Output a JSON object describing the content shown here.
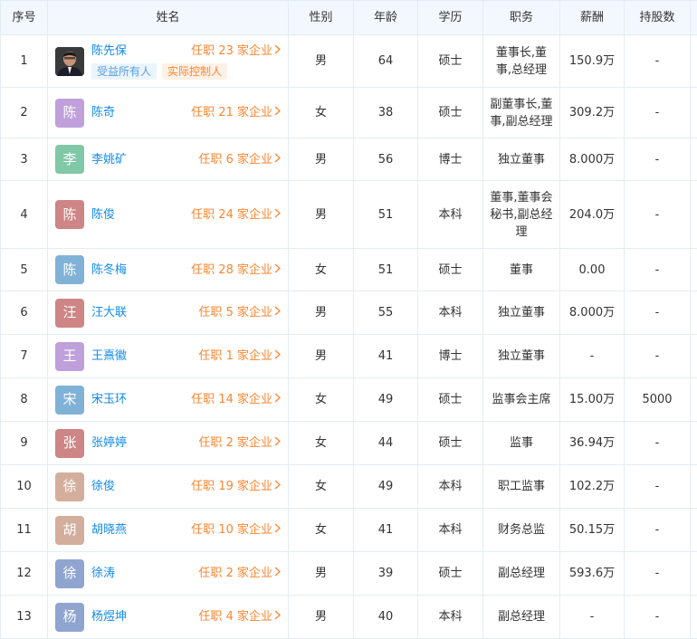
{
  "headers": [
    "序号",
    "姓名",
    "性别",
    "年龄",
    "学历",
    "职务",
    "薪酬",
    "持股数",
    ""
  ],
  "jobs_prefix": "任职",
  "jobs_suffix": "家企业",
  "colors": {
    "link": "#128bed",
    "jobs": "#fd8630",
    "header_bg": "#f2f8fe",
    "border": "#e4ecf3"
  },
  "rows": [
    {
      "no": "1",
      "name": "陈先保",
      "avatar": "photo",
      "avatar_color": "#2b2b2b",
      "jobs": "23",
      "tags": [
        {
          "label": "受益所有人",
          "style": "blue"
        },
        {
          "label": "实际控制人",
          "style": "orange"
        }
      ],
      "gender": "男",
      "age": "64",
      "edu": "硕士",
      "title": "董事长,董事,总经理",
      "pay": "150.9万",
      "shares": "-"
    },
    {
      "no": "2",
      "name": "陈奇",
      "avatar": "陈",
      "avatar_color": "#bfa0db",
      "jobs": "21",
      "gender": "女",
      "age": "38",
      "edu": "硕士",
      "title": "副董事长,董事,副总经理",
      "pay": "309.2万",
      "shares": "-"
    },
    {
      "no": "3",
      "name": "李姚矿",
      "avatar": "李",
      "avatar_color": "#80c8a8",
      "jobs": "6",
      "gender": "男",
      "age": "56",
      "edu": "博士",
      "title": "独立董事",
      "pay": "8.000万",
      "shares": "-"
    },
    {
      "no": "4",
      "name": "陈俊",
      "avatar": "陈",
      "avatar_color": "#cd8585",
      "jobs": "24",
      "gender": "男",
      "age": "51",
      "edu": "本科",
      "title": "董事,董事会秘书,副总经理",
      "pay": "204.0万",
      "shares": "-"
    },
    {
      "no": "5",
      "name": "陈冬梅",
      "avatar": "陈",
      "avatar_color": "#80b2d8",
      "jobs": "28",
      "gender": "女",
      "age": "51",
      "edu": "硕士",
      "title": "董事",
      "pay": "0.00",
      "shares": "-"
    },
    {
      "no": "6",
      "name": "汪大联",
      "avatar": "汪",
      "avatar_color": "#cd8585",
      "jobs": "5",
      "gender": "男",
      "age": "55",
      "edu": "本科",
      "title": "独立董事",
      "pay": "8.000万",
      "shares": "-"
    },
    {
      "no": "7",
      "name": "王熹徽",
      "avatar": "王",
      "avatar_color": "#bfa0db",
      "jobs": "1",
      "gender": "男",
      "age": "41",
      "edu": "博士",
      "title": "独立董事",
      "pay": "-",
      "shares": "-"
    },
    {
      "no": "8",
      "name": "宋玉环",
      "avatar": "宋",
      "avatar_color": "#80b2d8",
      "jobs": "14",
      "gender": "女",
      "age": "49",
      "edu": "硕士",
      "title": "监事会主席",
      "pay": "15.00万",
      "shares": "5000"
    },
    {
      "no": "9",
      "name": "张婷婷",
      "avatar": "张",
      "avatar_color": "#cd8585",
      "jobs": "2",
      "gender": "女",
      "age": "44",
      "edu": "硕士",
      "title": "监事",
      "pay": "36.94万",
      "shares": "-"
    },
    {
      "no": "10",
      "name": "徐俊",
      "avatar": "徐",
      "avatar_color": "#d4ae9c",
      "jobs": "19",
      "gender": "女",
      "age": "49",
      "edu": "本科",
      "title": "职工监事",
      "pay": "102.2万",
      "shares": "-"
    },
    {
      "no": "11",
      "name": "胡晓燕",
      "avatar": "胡",
      "avatar_color": "#d4ae9c",
      "jobs": "10",
      "gender": "女",
      "age": "41",
      "edu": "本科",
      "title": "财务总监",
      "pay": "50.15万",
      "shares": "-"
    },
    {
      "no": "12",
      "name": "徐涛",
      "avatar": "徐",
      "avatar_color": "#8fa4cf",
      "jobs": "2",
      "gender": "男",
      "age": "39",
      "edu": "硕士",
      "title": "副总经理",
      "pay": "593.6万",
      "shares": "-"
    },
    {
      "no": "13",
      "name": "杨煜坤",
      "avatar": "杨",
      "avatar_color": "#8fa4cf",
      "jobs": "4",
      "gender": "男",
      "age": "40",
      "edu": "本科",
      "title": "副总经理",
      "pay": "-",
      "shares": "-"
    }
  ]
}
